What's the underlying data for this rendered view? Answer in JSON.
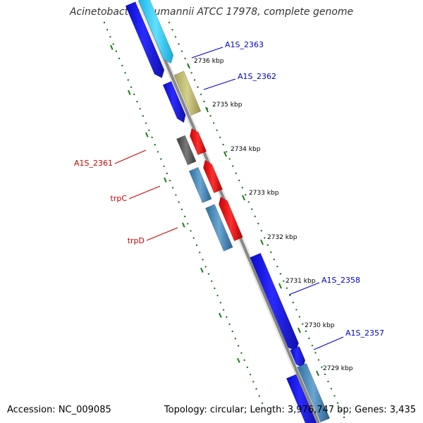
{
  "title": "Acinetobacter baumannii ATCC 17978, complete genome",
  "accession": "Accession: NC_009085",
  "summary": "Topology: circular; Length: 3,976,747 bp; Genes: 3,435",
  "colors": {
    "backbone": "#888888",
    "forward_cds": "#1a1aff",
    "label_forward": "#0000cc",
    "label_reverse": "#cc0000",
    "tick": "#1f7a1f"
  },
  "scale_ticks": [
    "2736 kbp",
    "2735 kbp",
    "2734 kbp",
    "2733 kbp",
    "2732 kbp",
    "2731 kbp",
    "2730 kbp",
    "2729 kbp"
  ],
  "genes": [
    {
      "label": "A1S_2363",
      "color": "#0000cc"
    },
    {
      "label": "A1S_2362",
      "color": "#0000cc"
    },
    {
      "label": "A1S_2361",
      "color": "#cc0000"
    },
    {
      "label": "trpC",
      "color": "#cc0000"
    },
    {
      "label": "trpD",
      "color": "#cc0000"
    },
    {
      "label": "A1S_2358",
      "color": "#0000cc"
    },
    {
      "label": "A1S_2357",
      "color": "#0000cc"
    }
  ]
}
